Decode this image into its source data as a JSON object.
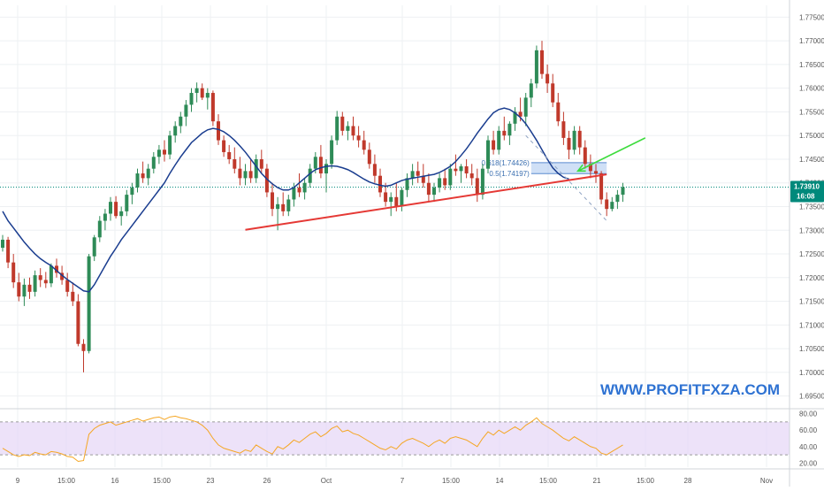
{
  "chart_data": {
    "type": "candlestick",
    "price_axis": {
      "range": [
        1.6925,
        1.7775
      ],
      "ticks": [
        "1.69500",
        "1.70000",
        "1.70500",
        "1.71000",
        "1.71500",
        "1.72000",
        "1.72500",
        "1.73000",
        "1.73500",
        "1.74000",
        "1.74500",
        "1.75000",
        "1.75500",
        "1.76000",
        "1.76500",
        "1.77000",
        "1.77500"
      ]
    },
    "time_axis": {
      "labels": [
        "9",
        "15:00",
        "16",
        "15:00",
        "23",
        "26",
        "Oct",
        "7",
        "15:00",
        "14",
        "15:00",
        "21",
        "15:00",
        "28",
        "Nov"
      ]
    },
    "current_price": {
      "value": "1.73910",
      "value_num": 1.7391,
      "countdown": "16:08",
      "color": "#00897b"
    },
    "colors": {
      "up": "#2e8b57",
      "down": "#c0392b",
      "ma": "#1a3d8f",
      "trendline": "#e53935",
      "arrow": "#3ddc3d",
      "rsi": "#f5a623",
      "rsi_band": "#e6d6f7"
    },
    "candles": [
      [
        1.7263,
        1.729,
        1.7255,
        1.728
      ],
      [
        1.728,
        1.7286,
        1.722,
        1.7232
      ],
      [
        1.7232,
        1.725,
        1.7178,
        1.719
      ],
      [
        1.719,
        1.721,
        1.715,
        1.716
      ],
      [
        1.716,
        1.7198,
        1.714,
        1.7185
      ],
      [
        1.7185,
        1.72,
        1.7155,
        1.717
      ],
      [
        1.717,
        1.7215,
        1.716,
        1.7205
      ],
      [
        1.7205,
        1.722,
        1.718,
        1.7195
      ],
      [
        1.7195,
        1.7212,
        1.7178,
        1.7188
      ],
      [
        1.7188,
        1.723,
        1.718,
        1.7225
      ],
      [
        1.7225,
        1.724,
        1.72,
        1.721
      ],
      [
        1.721,
        1.7225,
        1.7185,
        1.7195
      ],
      [
        1.7195,
        1.721,
        1.716,
        1.717
      ],
      [
        1.717,
        1.719,
        1.714,
        1.715
      ],
      [
        1.715,
        1.7165,
        1.7055,
        1.706
      ],
      [
        1.706,
        1.707,
        1.7,
        1.7045
      ],
      [
        1.7045,
        1.725,
        1.704,
        1.7245
      ],
      [
        1.7245,
        1.729,
        1.7235,
        1.7285
      ],
      [
        1.7285,
        1.733,
        1.7275,
        1.732
      ],
      [
        1.732,
        1.7345,
        1.73,
        1.7335
      ],
      [
        1.7335,
        1.737,
        1.732,
        1.736
      ],
      [
        1.736,
        1.7372,
        1.7325,
        1.733
      ],
      [
        1.733,
        1.735,
        1.731,
        1.734
      ],
      [
        1.734,
        1.7385,
        1.733,
        1.7375
      ],
      [
        1.7375,
        1.74,
        1.7355,
        1.739
      ],
      [
        1.739,
        1.743,
        1.738,
        1.742
      ],
      [
        1.742,
        1.7445,
        1.74,
        1.741
      ],
      [
        1.741,
        1.744,
        1.7395,
        1.743
      ],
      [
        1.743,
        1.7465,
        1.742,
        1.7455
      ],
      [
        1.7455,
        1.748,
        1.744,
        1.747
      ],
      [
        1.747,
        1.749,
        1.7445,
        1.746
      ],
      [
        1.746,
        1.751,
        1.745,
        1.75
      ],
      [
        1.75,
        1.753,
        1.7485,
        1.752
      ],
      [
        1.752,
        1.755,
        1.7505,
        1.754
      ],
      [
        1.754,
        1.7575,
        1.752,
        1.7565
      ],
      [
        1.7565,
        1.76,
        1.755,
        1.759
      ],
      [
        1.759,
        1.7612,
        1.757,
        1.76
      ],
      [
        1.76,
        1.761,
        1.7575,
        1.758
      ],
      [
        1.758,
        1.76,
        1.7555,
        1.759
      ],
      [
        1.759,
        1.7595,
        1.752,
        1.753
      ],
      [
        1.753,
        1.7545,
        1.748,
        1.749
      ],
      [
        1.749,
        1.75,
        1.7455,
        1.7465
      ],
      [
        1.7465,
        1.748,
        1.744,
        1.745
      ],
      [
        1.745,
        1.7475,
        1.742,
        1.743
      ],
      [
        1.743,
        1.7455,
        1.7395,
        1.741
      ],
      [
        1.741,
        1.744,
        1.7395,
        1.7425
      ],
      [
        1.7425,
        1.745,
        1.74,
        1.741
      ],
      [
        1.741,
        1.746,
        1.74,
        1.745
      ],
      [
        1.745,
        1.747,
        1.742,
        1.743
      ],
      [
        1.743,
        1.744,
        1.737,
        1.738
      ],
      [
        1.738,
        1.74,
        1.733,
        1.7345
      ],
      [
        1.7345,
        1.737,
        1.73,
        1.7355
      ],
      [
        1.7355,
        1.738,
        1.733,
        1.734
      ],
      [
        1.734,
        1.7375,
        1.733,
        1.7365
      ],
      [
        1.7365,
        1.74,
        1.735,
        1.739
      ],
      [
        1.739,
        1.742,
        1.737,
        1.738
      ],
      [
        1.738,
        1.741,
        1.7365,
        1.74
      ],
      [
        1.74,
        1.744,
        1.739,
        1.743
      ],
      [
        1.743,
        1.7465,
        1.742,
        1.7455
      ],
      [
        1.7455,
        1.748,
        1.741,
        1.742
      ],
      [
        1.742,
        1.745,
        1.738,
        1.744
      ],
      [
        1.744,
        1.75,
        1.743,
        1.749
      ],
      [
        1.749,
        1.7552,
        1.748,
        1.754
      ],
      [
        1.754,
        1.755,
        1.75,
        1.751
      ],
      [
        1.751,
        1.753,
        1.749,
        1.752
      ],
      [
        1.752,
        1.754,
        1.749,
        1.75
      ],
      [
        1.75,
        1.752,
        1.7475,
        1.749
      ],
      [
        1.749,
        1.751,
        1.746,
        1.747
      ],
      [
        1.747,
        1.7485,
        1.743,
        1.744
      ],
      [
        1.744,
        1.746,
        1.74,
        1.7415
      ],
      [
        1.7415,
        1.743,
        1.737,
        1.738
      ],
      [
        1.738,
        1.74,
        1.735,
        1.736
      ],
      [
        1.736,
        1.738,
        1.733,
        1.737
      ],
      [
        1.737,
        1.74,
        1.734,
        1.735
      ],
      [
        1.735,
        1.739,
        1.734,
        1.7385
      ],
      [
        1.7385,
        1.742,
        1.737,
        1.741
      ],
      [
        1.741,
        1.744,
        1.7395,
        1.7425
      ],
      [
        1.7425,
        1.7445,
        1.74,
        1.7415
      ],
      [
        1.7415,
        1.744,
        1.739,
        1.74
      ],
      [
        1.74,
        1.742,
        1.736,
        1.7375
      ],
      [
        1.7375,
        1.74,
        1.736,
        1.739
      ],
      [
        1.739,
        1.742,
        1.738,
        1.741
      ],
      [
        1.741,
        1.743,
        1.7385,
        1.7395
      ],
      [
        1.7395,
        1.744,
        1.7385,
        1.743
      ],
      [
        1.743,
        1.746,
        1.7415,
        1.7425
      ],
      [
        1.7425,
        1.744,
        1.74,
        1.7435
      ],
      [
        1.7435,
        1.745,
        1.741,
        1.742
      ],
      [
        1.742,
        1.744,
        1.7395,
        1.741
      ],
      [
        1.741,
        1.743,
        1.736,
        1.7375
      ],
      [
        1.7375,
        1.744,
        1.7365,
        1.743
      ],
      [
        1.743,
        1.75,
        1.742,
        1.749
      ],
      [
        1.749,
        1.751,
        1.746,
        1.747
      ],
      [
        1.747,
        1.752,
        1.746,
        1.751
      ],
      [
        1.751,
        1.754,
        1.749,
        1.75
      ],
      [
        1.75,
        1.753,
        1.748,
        1.7525
      ],
      [
        1.7525,
        1.756,
        1.751,
        1.755
      ],
      [
        1.755,
        1.758,
        1.753,
        1.754
      ],
      [
        1.754,
        1.759,
        1.752,
        1.758
      ],
      [
        1.758,
        1.762,
        1.756,
        1.761
      ],
      [
        1.761,
        1.769,
        1.76,
        1.768
      ],
      [
        1.768,
        1.77,
        1.762,
        1.763
      ],
      [
        1.763,
        1.765,
        1.759,
        1.761
      ],
      [
        1.761,
        1.763,
        1.756,
        1.757
      ],
      [
        1.757,
        1.759,
        1.752,
        1.753
      ],
      [
        1.753,
        1.755,
        1.748,
        1.7495
      ],
      [
        1.7495,
        1.751,
        1.745,
        1.747
      ],
      [
        1.747,
        1.752,
        1.746,
        1.751
      ],
      [
        1.751,
        1.752,
        1.746,
        1.7475
      ],
      [
        1.7475,
        1.749,
        1.743,
        1.744
      ],
      [
        1.744,
        1.746,
        1.741,
        1.7425
      ],
      [
        1.7425,
        1.744,
        1.74,
        1.742
      ],
      [
        1.742,
        1.7425,
        1.7355,
        1.7365
      ],
      [
        1.7365,
        1.738,
        1.733,
        1.7345
      ],
      [
        1.7345,
        1.737,
        1.734,
        1.736
      ],
      [
        1.736,
        1.7385,
        1.7345,
        1.7375
      ],
      [
        1.7375,
        1.74,
        1.736,
        1.7391
      ]
    ],
    "moving_average": [
      1.734,
      1.732,
      1.7305,
      1.729,
      1.7275,
      1.7262,
      1.725,
      1.724,
      1.7232,
      1.7225,
      1.7215,
      1.7205,
      1.7196,
      1.7188,
      1.718,
      1.7172,
      1.717,
      1.7185,
      1.7205,
      1.7225,
      1.7245,
      1.7262,
      1.728,
      1.7295,
      1.731,
      1.7325,
      1.734,
      1.7355,
      1.737,
      1.7385,
      1.74,
      1.742,
      1.7438,
      1.7455,
      1.747,
      1.7485,
      1.7495,
      1.7505,
      1.7512,
      1.7515,
      1.7513,
      1.7508,
      1.75,
      1.749,
      1.7478,
      1.7465,
      1.745,
      1.7435,
      1.742,
      1.7408,
      1.7398,
      1.739,
      1.7385,
      1.7385,
      1.739,
      1.74,
      1.741,
      1.742,
      1.7428,
      1.7432,
      1.7435,
      1.7436,
      1.7435,
      1.7432,
      1.7428,
      1.7422,
      1.7415,
      1.7408,
      1.7402,
      1.7398,
      1.7395,
      1.7393,
      1.7395,
      1.74,
      1.7405,
      1.7408,
      1.741,
      1.7412,
      1.7414,
      1.7416,
      1.7418,
      1.7422,
      1.7428,
      1.7435,
      1.7445,
      1.7458,
      1.7472,
      1.7488,
      1.7505,
      1.752,
      1.7535,
      1.7548,
      1.7555,
      1.7558,
      1.7555,
      1.7548,
      1.7538,
      1.7525,
      1.7508,
      1.749,
      1.747,
      1.745,
      1.7432,
      1.742,
      1.7412,
      1.7408
    ],
    "trendline": {
      "from": [
        45,
        1.7301
      ],
      "to": [
        112,
        1.7418
      ]
    },
    "fib_zone": {
      "x_range": [
        98,
        112
      ],
      "levels": [
        {
          "label": "0.618(1.74426)",
          "price": 1.74426
        },
        {
          "label": "0.5(1.74197)",
          "price": 1.74197
        }
      ]
    },
    "projection": {
      "from": [
        97,
        1.75
      ],
      "to": [
        112,
        1.732
      ]
    },
    "arrow": {
      "from": [
        118,
        1.7495
      ],
      "to": [
        106,
        1.7425
      ]
    },
    "rsi": {
      "range": [
        15,
        85
      ],
      "ticks": [
        "80.00",
        "60.00",
        "40.00",
        "20.00"
      ],
      "band": [
        30,
        70
      ],
      "values": [
        38,
        34,
        30,
        28,
        30,
        29,
        33,
        31,
        30,
        34,
        33,
        31,
        28,
        27,
        22,
        23,
        55,
        62,
        66,
        68,
        70,
        66,
        68,
        70,
        72,
        74,
        71,
        73,
        75,
        76,
        73,
        76,
        77,
        75,
        74,
        72,
        70,
        66,
        60,
        50,
        42,
        38,
        36,
        34,
        32,
        36,
        34,
        42,
        38,
        34,
        31,
        40,
        37,
        42,
        48,
        45,
        50,
        55,
        58,
        52,
        56,
        62,
        65,
        58,
        60,
        56,
        54,
        50,
        46,
        42,
        38,
        36,
        40,
        37,
        44,
        48,
        50,
        47,
        44,
        40,
        45,
        48,
        44,
        50,
        52,
        50,
        48,
        44,
        40,
        50,
        58,
        54,
        60,
        56,
        60,
        64,
        60,
        66,
        70,
        75,
        68,
        64,
        60,
        55,
        50,
        47,
        52,
        48,
        44,
        40,
        38,
        32,
        30,
        34,
        38,
        42
      ]
    }
  },
  "watermark": "WWW.PROFITFXZA.COM"
}
